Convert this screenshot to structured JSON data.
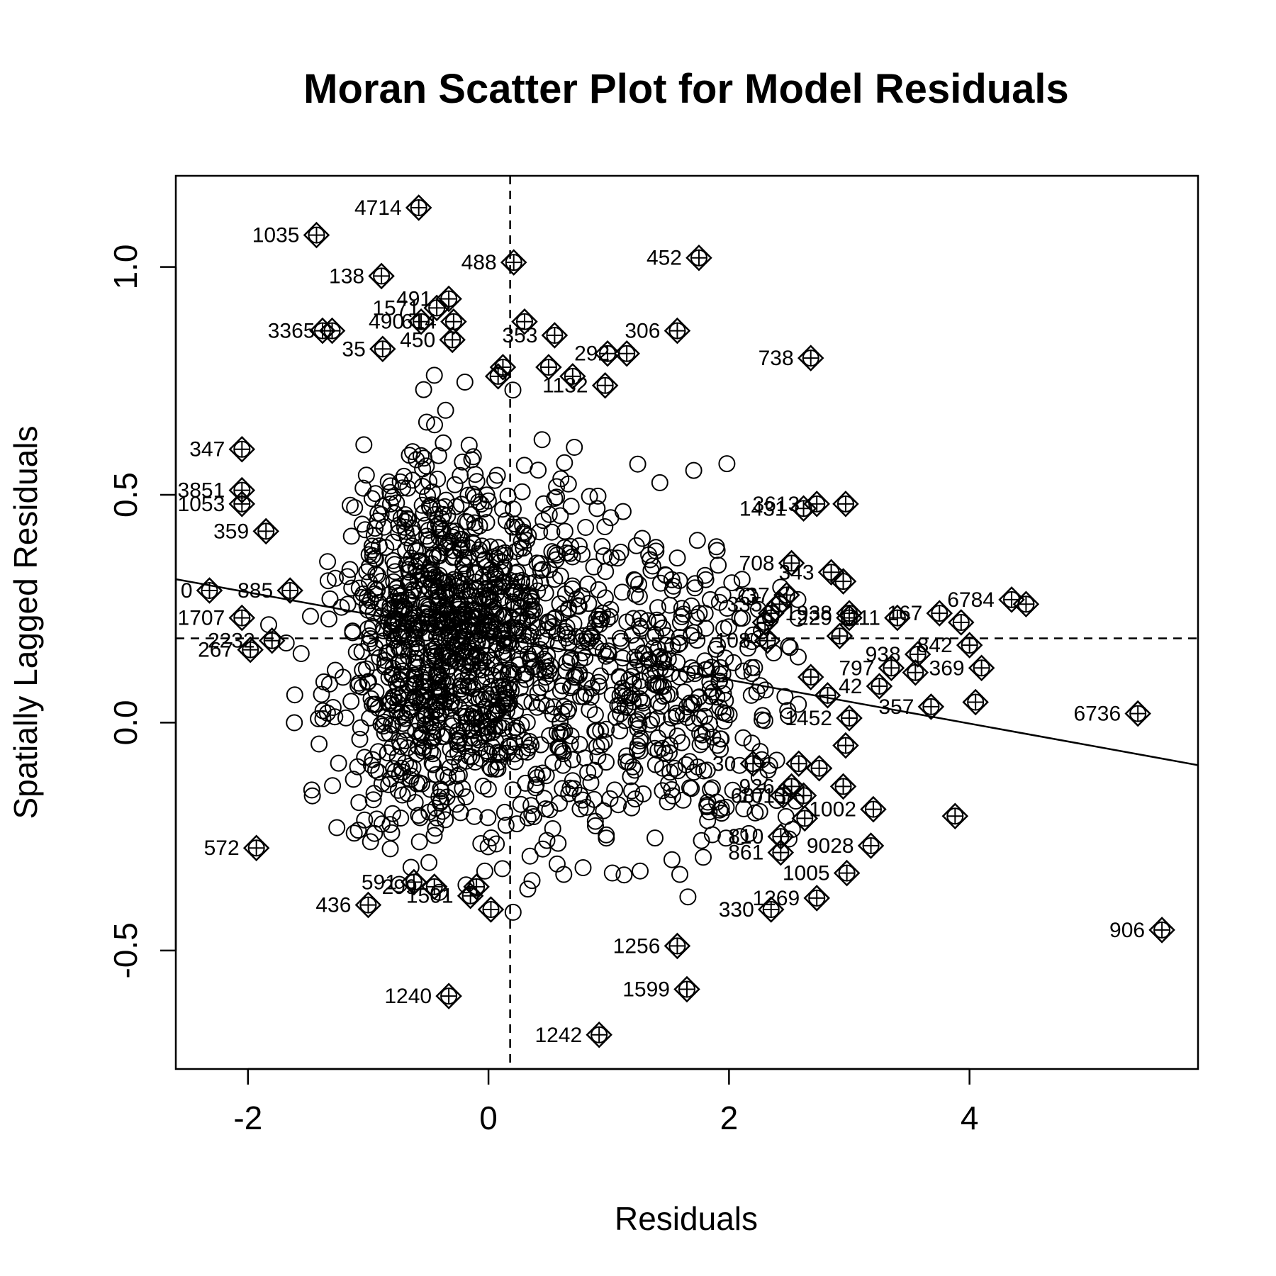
{
  "chart_data": {
    "type": "scatter",
    "title": "Moran Scatter Plot for Model Residuals",
    "xlabel": "Residuals",
    "ylabel": "Spatially Lagged Residuals",
    "xlim": [
      -2.6,
      5.9
    ],
    "ylim": [
      -0.76,
      1.2
    ],
    "xticks": [
      -2,
      0,
      2,
      4
    ],
    "yticks": [
      -0.5,
      0.0,
      0.5,
      1.0
    ],
    "xtick_labels": [
      "-2",
      "0",
      "2",
      "4"
    ],
    "ytick_labels": [
      "-0.5",
      "0.0",
      "0.5",
      "1.0"
    ],
    "mean_x": 0.18,
    "mean_y": 0.185,
    "regression_line": {
      "intercept": 0.19,
      "slope": -0.048
    },
    "influential_points": [
      {
        "x": -0.58,
        "y": 1.13,
        "label": "4714"
      },
      {
        "x": -1.43,
        "y": 1.07,
        "label": "1035"
      },
      {
        "x": 0.21,
        "y": 1.01,
        "label": "488"
      },
      {
        "x": 1.75,
        "y": 1.02,
        "label": "452"
      },
      {
        "x": -0.89,
        "y": 0.98,
        "label": "138"
      },
      {
        "x": -0.33,
        "y": 0.93,
        "label": "491"
      },
      {
        "x": -0.43,
        "y": 0.91,
        "label": "1571"
      },
      {
        "x": -0.56,
        "y": 0.88,
        "label": "490"
      },
      {
        "x": -0.29,
        "y": 0.88,
        "label": "614"
      },
      {
        "x": 0.3,
        "y": 0.88,
        "label": ""
      },
      {
        "x": -1.3,
        "y": 0.86,
        "label": "3365"
      },
      {
        "x": -1.38,
        "y": 0.86,
        "label": ""
      },
      {
        "x": 0.55,
        "y": 0.85,
        "label": "353"
      },
      {
        "x": 1.57,
        "y": 0.86,
        "label": "306"
      },
      {
        "x": -0.3,
        "y": 0.84,
        "label": "450"
      },
      {
        "x": -0.88,
        "y": 0.82,
        "label": "35"
      },
      {
        "x": 1.15,
        "y": 0.81,
        "label": "292"
      },
      {
        "x": 0.99,
        "y": 0.81,
        "label": ""
      },
      {
        "x": 2.68,
        "y": 0.8,
        "label": "738"
      },
      {
        "x": 0.12,
        "y": 0.78,
        "label": ""
      },
      {
        "x": 0.5,
        "y": 0.78,
        "label": ""
      },
      {
        "x": 0.7,
        "y": 0.76,
        "label": ""
      },
      {
        "x": 0.97,
        "y": 0.74,
        "label": "1132"
      },
      {
        "x": 0.08,
        "y": 0.76,
        "label": ""
      },
      {
        "x": -2.05,
        "y": 0.6,
        "label": "347"
      },
      {
        "x": -2.05,
        "y": 0.51,
        "label": "3851"
      },
      {
        "x": -2.05,
        "y": 0.48,
        "label": "1053"
      },
      {
        "x": -1.85,
        "y": 0.42,
        "label": "359"
      },
      {
        "x": 2.97,
        "y": 0.48,
        "label": ""
      },
      {
        "x": 2.73,
        "y": 0.48,
        "label": "3613"
      },
      {
        "x": 2.62,
        "y": 0.47,
        "label": "1431"
      },
      {
        "x": 2.52,
        "y": 0.35,
        "label": "708"
      },
      {
        "x": 2.85,
        "y": 0.33,
        "label": "343"
      },
      {
        "x": 2.95,
        "y": 0.31,
        "label": ""
      },
      {
        "x": -2.32,
        "y": 0.29,
        "label": "0"
      },
      {
        "x": -1.65,
        "y": 0.29,
        "label": "885"
      },
      {
        "x": 2.48,
        "y": 0.28,
        "label": "237"
      },
      {
        "x": 2.42,
        "y": 0.26,
        "label": "335"
      },
      {
        "x": 2.35,
        "y": 0.24,
        "label": ""
      },
      {
        "x": 2.3,
        "y": 0.22,
        "label": ""
      },
      {
        "x": 3.0,
        "y": 0.23,
        "label": "229"
      },
      {
        "x": 3.0,
        "y": 0.24,
        "label": "1938"
      },
      {
        "x": 3.4,
        "y": 0.23,
        "label": "1111"
      },
      {
        "x": 3.75,
        "y": 0.24,
        "label": "167"
      },
      {
        "x": 3.93,
        "y": 0.22,
        "label": ""
      },
      {
        "x": 4.35,
        "y": 0.27,
        "label": "6784"
      },
      {
        "x": 4.47,
        "y": 0.26,
        "label": ""
      },
      {
        "x": -2.05,
        "y": 0.23,
        "label": "1707"
      },
      {
        "x": -1.8,
        "y": 0.18,
        "label": "2232"
      },
      {
        "x": -1.98,
        "y": 0.16,
        "label": "267"
      },
      {
        "x": 2.32,
        "y": 0.18,
        "label": "108"
      },
      {
        "x": 2.92,
        "y": 0.19,
        "label": ""
      },
      {
        "x": 4.0,
        "y": 0.17,
        "label": "842"
      },
      {
        "x": 3.57,
        "y": 0.15,
        "label": "938"
      },
      {
        "x": 4.1,
        "y": 0.12,
        "label": "369"
      },
      {
        "x": 3.35,
        "y": 0.12,
        "label": "797"
      },
      {
        "x": 3.55,
        "y": 0.11,
        "label": ""
      },
      {
        "x": 2.68,
        "y": 0.1,
        "label": ""
      },
      {
        "x": 3.25,
        "y": 0.08,
        "label": "42"
      },
      {
        "x": 2.82,
        "y": 0.06,
        "label": ""
      },
      {
        "x": 4.05,
        "y": 0.045,
        "label": ""
      },
      {
        "x": 3.68,
        "y": 0.035,
        "label": "357"
      },
      {
        "x": 3.0,
        "y": 0.01,
        "label": "1452"
      },
      {
        "x": 2.97,
        "y": -0.05,
        "label": ""
      },
      {
        "x": 2.75,
        "y": -0.1,
        "label": ""
      },
      {
        "x": 2.58,
        "y": -0.09,
        "label": ""
      },
      {
        "x": 2.2,
        "y": -0.09,
        "label": "30"
      },
      {
        "x": 5.4,
        "y": 0.02,
        "label": "6736"
      },
      {
        "x": 2.52,
        "y": -0.14,
        "label": "926"
      },
      {
        "x": 2.95,
        "y": -0.14,
        "label": ""
      },
      {
        "x": 2.62,
        "y": -0.16,
        "label": "1013"
      },
      {
        "x": 2.45,
        "y": -0.16,
        "label": "687"
      },
      {
        "x": 3.2,
        "y": -0.19,
        "label": "1002"
      },
      {
        "x": 3.88,
        "y": -0.205,
        "label": ""
      },
      {
        "x": 2.63,
        "y": -0.21,
        "label": ""
      },
      {
        "x": 2.43,
        "y": -0.25,
        "label": "810"
      },
      {
        "x": -1.93,
        "y": -0.275,
        "label": "572"
      },
      {
        "x": 3.18,
        "y": -0.27,
        "label": "9028"
      },
      {
        "x": 2.43,
        "y": -0.285,
        "label": "861"
      },
      {
        "x": 2.98,
        "y": -0.33,
        "label": "1005"
      },
      {
        "x": -0.62,
        "y": -0.35,
        "label": "591"
      },
      {
        "x": -0.45,
        "y": -0.36,
        "label": "299"
      },
      {
        "x": -0.1,
        "y": -0.36,
        "label": ""
      },
      {
        "x": -0.15,
        "y": -0.38,
        "label": "1501"
      },
      {
        "x": 2.73,
        "y": -0.385,
        "label": "1269"
      },
      {
        "x": -1.0,
        "y": -0.4,
        "label": "436"
      },
      {
        "x": 0.02,
        "y": -0.41,
        "label": ""
      },
      {
        "x": 2.35,
        "y": -0.41,
        "label": "330"
      },
      {
        "x": 5.6,
        "y": -0.455,
        "label": "906"
      },
      {
        "x": 1.57,
        "y": -0.49,
        "label": "1256"
      },
      {
        "x": 1.65,
        "y": -0.585,
        "label": "1599"
      },
      {
        "x": -0.33,
        "y": -0.6,
        "label": "1240"
      },
      {
        "x": 0.92,
        "y": -0.685,
        "label": "1242"
      }
    ]
  }
}
